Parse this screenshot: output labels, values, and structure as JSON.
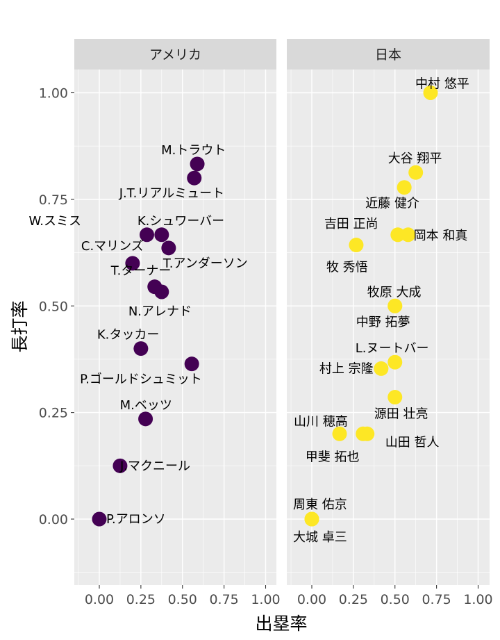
{
  "chart_data": {
    "type": "scatter",
    "xlabel": "出塁率",
    "ylabel": "長打率",
    "xlim": [
      -0.15,
      1.05
    ],
    "ylim": [
      -0.15,
      1.06
    ],
    "x_ticks": [
      "0.00",
      "0.25",
      "0.50",
      "0.75",
      "1.00"
    ],
    "y_ticks": [
      "0.00",
      "0.25",
      "0.50",
      "0.75",
      "1.00"
    ],
    "grid": true,
    "colors": {
      "アメリカ": "#440154",
      "日本": "#FDE725",
      "panel_bg": "#EBEBEB",
      "strip_bg": "#D9D9D9",
      "grid": "#FFFFFF"
    },
    "facets": [
      {
        "name": "アメリカ",
        "points": [
          {
            "label": "M.トラウト",
            "x": 0.589,
            "y": 0.833
          },
          {
            "label": "J.T.リアルミュート",
            "x": 0.571,
            "y": 0.8
          },
          {
            "label": "W.スミス",
            "x": 0.286,
            "y": 0.667
          },
          {
            "label": "K.シュワーバー",
            "x": 0.375,
            "y": 0.667
          },
          {
            "label": "T.アンダーソン",
            "x": 0.417,
            "y": 0.636
          },
          {
            "label": "C.マリンズ",
            "x": 0.2,
            "y": 0.6
          },
          {
            "label": "T.ターナー",
            "x": 0.333,
            "y": 0.545
          },
          {
            "label": "N.アレナド",
            "x": 0.375,
            "y": 0.533
          },
          {
            "label": "K.タッカー",
            "x": 0.25,
            "y": 0.4
          },
          {
            "label": "P.ゴールドシュミット",
            "x": 0.556,
            "y": 0.364
          },
          {
            "label": "M.ベッツ",
            "x": 0.278,
            "y": 0.235
          },
          {
            "label": "J.マクニール",
            "x": 0.125,
            "y": 0.125
          },
          {
            "label": "P.アロンソ",
            "x": 0.0,
            "y": 0.0
          }
        ]
      },
      {
        "name": "日本",
        "points": [
          {
            "label": "中村 悠平",
            "x": 0.714,
            "y": 1.0
          },
          {
            "label": "大谷 翔平",
            "x": 0.625,
            "y": 0.813
          },
          {
            "label": "近藤 健介",
            "x": 0.556,
            "y": 0.778
          },
          {
            "label": "吉田 正尚",
            "x": 0.517,
            "y": 0.667
          },
          {
            "label": "岡本 和真",
            "x": 0.579,
            "y": 0.667
          },
          {
            "label": "牧 秀悟",
            "x": 0.267,
            "y": 0.643
          },
          {
            "label": "牧原 大成",
            "x": 0.5,
            "y": 0.5
          },
          {
            "label": "中野 拓夢",
            "x": 0.5,
            "y": 0.5
          },
          {
            "label": "L.ヌートバー",
            "x": 0.5,
            "y": 0.368
          },
          {
            "label": "村上 宗隆",
            "x": 0.417,
            "y": 0.353
          },
          {
            "label": "源田 壮亮",
            "x": 0.5,
            "y": 0.286
          },
          {
            "label": "山川 穂高",
            "x": 0.167,
            "y": 0.2
          },
          {
            "label": "山田 哲人",
            "x": 0.333,
            "y": 0.2
          },
          {
            "label": "甲斐 拓也",
            "x": 0.308,
            "y": 0.2
          },
          {
            "label": "周東 佑京",
            "x": 0.0,
            "y": 0.0
          },
          {
            "label": "大城 卓三",
            "x": 0.0,
            "y": 0.0
          }
        ]
      }
    ]
  }
}
